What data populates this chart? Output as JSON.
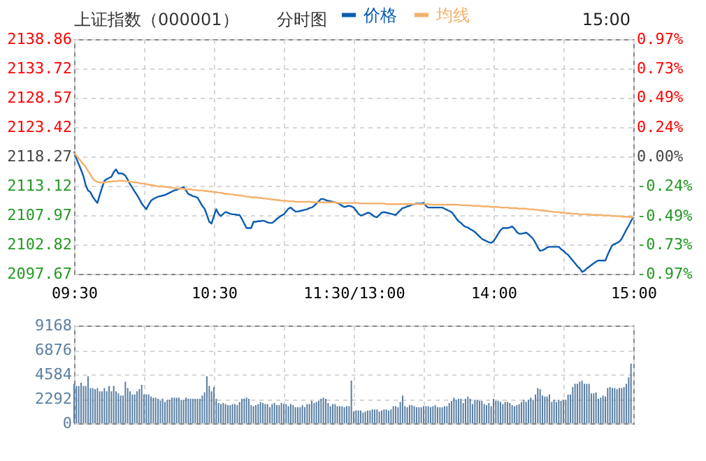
{
  "chart_data": [
    {
      "type": "line",
      "title": "上证指数（000001）",
      "subtitle": "分时图",
      "annotations": [
        "15:00"
      ],
      "legend": "top",
      "grid": true,
      "categories": [
        "09:30",
        null,
        null,
        null,
        null,
        null,
        null,
        null,
        null,
        null,
        null,
        null,
        null,
        null,
        null,
        null,
        null,
        null,
        null,
        null,
        null,
        null,
        null,
        null,
        null,
        null,
        null,
        null,
        null,
        null,
        null,
        null,
        null,
        null,
        null,
        null,
        null,
        null,
        null,
        null,
        null,
        null,
        null,
        null,
        null,
        null,
        null,
        null,
        null,
        null,
        null,
        null,
        null,
        null,
        null,
        null,
        null,
        null,
        null,
        null,
        "10:30",
        null,
        null,
        null,
        null,
        null,
        null,
        null,
        null,
        null,
        null,
        null,
        null,
        null,
        null,
        null,
        null,
        null,
        null,
        null,
        null,
        null,
        null,
        null,
        null,
        null,
        null,
        null,
        null,
        null,
        null,
        null,
        null,
        null,
        null,
        null,
        null,
        null,
        null,
        null,
        null,
        null,
        null,
        null,
        null,
        null,
        null,
        null,
        null,
        null,
        null,
        null,
        null,
        null,
        null,
        null,
        null,
        null,
        null,
        null,
        "11:30/13:00",
        null,
        null,
        null,
        null,
        null,
        null,
        null,
        null,
        null,
        null,
        null,
        null,
        null,
        null,
        null,
        null,
        null,
        null,
        null,
        null,
        null,
        null,
        null,
        null,
        null,
        null,
        null,
        null,
        null,
        null,
        null,
        null,
        null,
        null,
        null,
        null,
        null,
        null,
        null,
        null,
        null,
        null,
        null,
        null,
        null,
        null,
        null,
        null,
        null,
        null,
        null,
        null,
        null,
        null,
        null,
        null,
        null,
        null,
        null,
        "14:00",
        null,
        null,
        null,
        null,
        null,
        null,
        null,
        null,
        null,
        null,
        null,
        null,
        null,
        null,
        null,
        null,
        null,
        null,
        null,
        null,
        null,
        null,
        null,
        null,
        null,
        null,
        null,
        null,
        null,
        null,
        null,
        null,
        null,
        null,
        null,
        null,
        null,
        null,
        null,
        null,
        null,
        null,
        null,
        null,
        null,
        null,
        null,
        null,
        null,
        null,
        null,
        null,
        null,
        null,
        null,
        null,
        null,
        null,
        null,
        "15:00"
      ],
      "ylim": [
        2097.67,
        2138.86
      ],
      "yticks": [
        2097.67,
        2102.82,
        2107.97,
        2113.12,
        2118.27,
        2123.42,
        2128.57,
        2133.72,
        2138.86
      ],
      "y2lim": [
        -0.97,
        0.97
      ],
      "y2ticks": [
        {
          "value": -0.97,
          "label": "-0.97%"
        },
        {
          "value": -0.73,
          "label": "-0.73%"
        },
        {
          "value": -0.49,
          "label": "-0.49%"
        },
        {
          "value": -0.24,
          "label": "-0.24%"
        },
        {
          "value": 0,
          "label": "0.00%"
        },
        {
          "value": 0.24,
          "label": "0.24%"
        },
        {
          "value": 0.49,
          "label": "0.49%"
        },
        {
          "value": 0.73,
          "label": "0.73%"
        },
        {
          "value": 0.97,
          "label": "0.97%"
        }
      ],
      "series": [
        {
          "name": "价格",
          "color": "#0a5cb0",
          "values": [
            2119.1,
            2117.9,
            2116.9,
            2115.9,
            2114.8,
            2113.2,
            2112.3,
            2112.0,
            2111.2,
            2110.6,
            2110.1,
            2111.5,
            2112.8,
            2114.0,
            2114.3,
            2114.5,
            2114.7,
            2115.5,
            2116.0,
            2115.3,
            2115.3,
            2115.2,
            2114.9,
            2114.2,
            2113.4,
            2112.8,
            2112.1,
            2111.5,
            2110.8,
            2110.0,
            2109.5,
            2109.0,
            2109.8,
            2110.5,
            2110.8,
            2111.0,
            2111.2,
            2111.3,
            2111.4,
            2111.5,
            2111.7,
            2111.9,
            2112.1,
            2112.3,
            2112.4,
            2112.6,
            2112.7,
            2112.9,
            2112.3,
            2111.7,
            2111.5,
            2111.3,
            2111.2,
            2111.0,
            2110.3,
            2109.6,
            2109.1,
            2108.0,
            2106.8,
            2106.5,
            2107.8,
            2109.0,
            2108.2,
            2107.8,
            2108.2,
            2108.5,
            2108.4,
            2108.2,
            2108.1,
            2108.1,
            2108.0,
            2108.0,
            2107.3,
            2106.5,
            2105.7,
            2105.7,
            2105.7,
            2106.8,
            2106.8,
            2106.9,
            2106.9,
            2107.0,
            2106.9,
            2106.7,
            2106.6,
            2106.6,
            2106.9,
            2107.3,
            2107.6,
            2107.9,
            2108.1,
            2108.6,
            2109.1,
            2109.3,
            2108.9,
            2108.6,
            2108.6,
            2108.7,
            2108.8,
            2108.9,
            2109.0,
            2109.2,
            2109.3,
            2109.6,
            2110.0,
            2110.4,
            2110.8,
            2110.8,
            2110.6,
            2110.5,
            2110.4,
            2110.3,
            2110.2,
            2110.1,
            2109.9,
            2109.6,
            2109.4,
            2109.5,
            2109.6,
            2109.5,
            2109.3,
            2108.8,
            2108.2,
            2107.9,
            2108.0,
            2108.2,
            2108.4,
            2108.3,
            2108.0,
            2107.7,
            2107.6,
            2108.0,
            2108.4,
            2108.5,
            2108.4,
            2108.3,
            2108.2,
            2108.1,
            2108.0,
            2108.4,
            2108.8,
            2109.2,
            2109.3,
            2109.5,
            2109.6,
            2109.8,
            2109.9,
            2110.0,
            2110.0,
            2110.0,
            2110.1,
            2109.6,
            2109.3,
            2109.3,
            2109.3,
            2109.3,
            2109.3,
            2109.3,
            2109.3,
            2109.1,
            2108.9,
            2108.7,
            2108.5,
            2108.0,
            2107.4,
            2106.9,
            2106.6,
            2106.2,
            2105.9,
            2105.8,
            2105.5,
            2105.3,
            2105.0,
            2104.6,
            2104.2,
            2103.8,
            2103.6,
            2103.4,
            2103.2,
            2103.1,
            2103.4,
            2104.0,
            2104.7,
            2105.3,
            2105.7,
            2105.7,
            2105.7,
            2105.8,
            2106.0,
            2105.6,
            2105.0,
            2104.7,
            2104.7,
            2104.8,
            2104.9,
            2104.6,
            2104.2,
            2103.8,
            2103.1,
            2102.3,
            2101.7,
            2101.8,
            2102.0,
            2102.3,
            2102.4,
            2102.4,
            2102.4,
            2102.4,
            2102.4,
            2102.0,
            2101.7,
            2101.3,
            2101.0,
            2100.5,
            2100.0,
            2099.5,
            2099.0,
            2098.6,
            2098.0,
            2098.2,
            2098.6,
            2098.9,
            2099.2,
            2099.5,
            2099.8,
            2100.0,
            2100.0,
            2100.0,
            2100.0,
            2101.0,
            2101.9,
            2102.7,
            2102.9,
            2103.1,
            2103.3,
            2103.8,
            2104.6,
            2105.4,
            2106.1,
            2106.9,
            2107.6
          ]
        },
        {
          "name": "均线",
          "color": "#f5b06a",
          "values": [
            2118.9,
            2118.4,
            2117.9,
            2117.4,
            2116.9,
            2116.4,
            2115.7,
            2115.1,
            2114.4,
            2114.0,
            2113.8,
            2113.7,
            2113.7,
            2113.7,
            2113.8,
            2113.8,
            2113.9,
            2113.9,
            2113.9,
            2114.0,
            2114.0,
            2114.0,
            2113.9,
            2113.9,
            2113.8,
            2113.8,
            2113.7,
            2113.7,
            2113.6,
            2113.5,
            2113.5,
            2113.4,
            2113.3,
            2113.3,
            2113.2,
            2113.1,
            2113.0,
            2113.0,
            2113.0,
            2112.9,
            2112.9,
            2112.8,
            2112.8,
            2112.7,
            2112.7,
            2112.6,
            2112.6,
            2112.6,
            2112.5,
            2112.5,
            2112.5,
            2112.4,
            2112.4,
            2112.3,
            2112.3,
            2112.3,
            2112.2,
            2112.2,
            2112.1,
            2112.1,
            2112.0,
            2112.0,
            2111.9,
            2111.9,
            2111.8,
            2111.7,
            2111.7,
            2111.6,
            2111.6,
            2111.5,
            2111.5,
            2111.4,
            2111.4,
            2111.3,
            2111.2,
            2111.2,
            2111.1,
            2111.1,
            2111.1,
            2111.0,
            2111.0,
            2110.9,
            2110.9,
            2110.8,
            2110.8,
            2110.7,
            2110.7,
            2110.6,
            2110.6,
            2110.5,
            2110.5,
            2110.5,
            2110.4,
            2110.4,
            2110.4,
            2110.3,
            2110.3,
            2110.3,
            2110.3,
            2110.3,
            2110.3,
            2110.3,
            2110.3,
            2110.2,
            2110.2,
            2110.2,
            2110.2,
            2110.2,
            2110.2,
            2110.2,
            2110.2,
            2110.2,
            2110.2,
            2110.1,
            2110.1,
            2110.1,
            2110.1,
            2110.1,
            2110.1,
            2110.1,
            2110.1,
            2110.1,
            2110.1,
            2110.0,
            2110.0,
            2110.0,
            2110.0,
            2110.0,
            2110.0,
            2110.0,
            2110.0,
            2110.0,
            2110.0,
            2110.0,
            2109.9,
            2109.9,
            2109.9,
            2109.9,
            2109.9,
            2109.9,
            2109.9,
            2109.9,
            2109.9,
            2109.9,
            2109.9,
            2109.9,
            2109.9,
            2109.9,
            2109.9,
            2109.9,
            2109.9,
            2109.9,
            2109.9,
            2109.8,
            2109.8,
            2109.8,
            2109.8,
            2109.8,
            2109.8,
            2109.8,
            2109.8,
            2109.8,
            2109.8,
            2109.8,
            2109.8,
            2109.8,
            2109.7,
            2109.7,
            2109.7,
            2109.7,
            2109.7,
            2109.6,
            2109.6,
            2109.6,
            2109.6,
            2109.5,
            2109.5,
            2109.5,
            2109.5,
            2109.4,
            2109.4,
            2109.4,
            2109.4,
            2109.3,
            2109.3,
            2109.3,
            2109.3,
            2109.2,
            2109.2,
            2109.2,
            2109.2,
            2109.1,
            2109.1,
            2109.1,
            2109.1,
            2109.0,
            2109.0,
            2109.0,
            2108.9,
            2108.9,
            2108.8,
            2108.8,
            2108.7,
            2108.7,
            2108.6,
            2108.6,
            2108.5,
            2108.5,
            2108.5,
            2108.4,
            2108.4,
            2108.3,
            2108.3,
            2108.3,
            2108.2,
            2108.2,
            2108.2,
            2108.1,
            2108.1,
            2108.1,
            2108.1,
            2108.1,
            2108.0,
            2108.0,
            2108.0,
            2108.0,
            2108.0,
            2107.9,
            2107.9,
            2107.9,
            2107.9,
            2107.8,
            2107.8,
            2107.8,
            2107.8,
            2107.7,
            2107.7,
            2107.7,
            2107.7,
            2107.6,
            2107.6
          ]
        }
      ]
    },
    {
      "type": "bar",
      "color": "#5a7fa2",
      "grid": true,
      "tick_labels": "y",
      "categories": [
        null,
        null,
        null,
        null,
        null,
        null,
        null,
        null,
        null,
        null,
        null,
        null,
        null,
        null,
        null,
        null,
        null,
        null,
        null,
        null,
        null,
        null,
        null,
        null,
        null,
        null,
        null,
        null,
        null,
        null,
        null,
        null,
        null,
        null,
        null,
        null,
        null,
        null,
        null,
        null,
        null,
        null,
        null,
        null,
        null,
        null,
        null,
        null,
        null,
        null,
        null,
        null,
        null,
        null,
        null,
        null,
        null,
        null,
        null,
        null,
        null,
        null,
        null,
        null,
        null,
        null,
        null,
        null,
        null,
        null,
        null,
        null,
        null,
        null,
        null,
        null,
        null,
        null,
        null,
        null,
        null,
        null,
        null,
        null,
        null,
        null,
        null,
        null,
        null,
        null,
        null,
        null,
        null,
        null,
        null,
        null,
        null,
        null,
        null,
        null,
        null,
        null,
        null,
        null,
        null,
        null,
        null,
        null,
        null,
        null,
        null,
        null,
        null,
        null,
        null,
        null,
        null,
        null,
        null,
        null,
        null,
        null,
        null,
        null,
        null,
        null,
        null,
        null,
        null,
        null,
        null,
        null,
        null,
        null,
        null,
        null,
        null,
        null,
        null,
        null,
        null,
        null,
        null,
        null,
        null,
        null,
        null,
        null,
        null,
        null,
        null,
        null,
        null,
        null,
        null,
        null,
        null,
        null,
        null,
        null,
        null,
        null,
        null,
        null,
        null,
        null,
        null,
        null,
        null,
        null,
        null,
        null,
        null,
        null,
        null,
        null,
        null,
        null,
        null,
        null,
        null,
        null,
        null,
        null,
        null,
        null,
        null,
        null,
        null,
        null,
        null,
        null,
        null,
        null,
        null,
        null,
        null,
        null,
        null,
        null,
        null,
        null,
        null,
        null,
        null,
        null,
        null,
        null,
        null,
        null,
        null,
        null,
        null,
        null,
        null,
        null,
        null,
        null,
        null,
        null,
        null,
        null,
        null,
        null,
        null,
        null,
        null,
        null,
        null,
        null,
        null,
        null,
        null,
        null,
        null,
        null,
        null,
        null,
        null,
        null,
        null
      ],
      "ylim": [
        0,
        9168
      ],
      "yticks": [
        0,
        2292,
        4584,
        6876,
        9168
      ],
      "values": [
        3700,
        3500,
        3500,
        3800,
        3500,
        3500,
        4400,
        3300,
        3300,
        3200,
        3300,
        3000,
        3000,
        3300,
        3000,
        3500,
        3000,
        3500,
        3000,
        2800,
        2600,
        2600,
        3900,
        3300,
        3000,
        2700,
        2700,
        3000,
        3200,
        3600,
        2700,
        2700,
        2700,
        2500,
        2400,
        2400,
        2300,
        2100,
        2300,
        2000,
        2200,
        2200,
        2400,
        2400,
        2400,
        2400,
        2200,
        2200,
        2400,
        2300,
        2300,
        2300,
        2300,
        2300,
        2300,
        2600,
        2900,
        4400,
        3500,
        3000,
        3400,
        2300,
        1900,
        1800,
        1900,
        1800,
        1700,
        1700,
        1800,
        1800,
        1700,
        2000,
        2300,
        2300,
        2400,
        2300,
        1700,
        1600,
        1700,
        1800,
        2000,
        1900,
        1800,
        1800,
        1500,
        1800,
        1900,
        1700,
        1700,
        1900,
        1800,
        1800,
        1600,
        1800,
        1700,
        1500,
        1500,
        1500,
        1700,
        1500,
        1800,
        1800,
        2100,
        1900,
        2000,
        2100,
        2300,
        2400,
        2300,
        1900,
        1600,
        1800,
        1800,
        1600,
        1600,
        1600,
        1500,
        1600,
        1600,
        4000,
        1100,
        1200,
        1200,
        1200,
        1000,
        1100,
        1200,
        1200,
        1300,
        1300,
        1300,
        1100,
        1200,
        1300,
        1300,
        1200,
        1300,
        1600,
        1600,
        1500,
        2000,
        2600,
        1600,
        1500,
        1700,
        1700,
        1600,
        1500,
        1500,
        1500,
        1600,
        1600,
        1600,
        1500,
        1600,
        1700,
        1500,
        1500,
        1500,
        1600,
        1600,
        1900,
        2100,
        2400,
        2200,
        2300,
        2300,
        1900,
        2300,
        2500,
        2300,
        1800,
        2200,
        2200,
        2100,
        2100,
        1800,
        1700,
        1900,
        1600,
        2300,
        2100,
        2100,
        2000,
        1800,
        2000,
        2000,
        1900,
        1700,
        1600,
        1700,
        1800,
        2000,
        2200,
        2000,
        2200,
        2400,
        2200,
        2700,
        3300,
        3200,
        2600,
        2500,
        2500,
        2700,
        2000,
        2200,
        2000,
        2200,
        2100,
        2200,
        2200,
        2700,
        2700,
        3400,
        3700,
        3700,
        3900,
        4000,
        3700,
        3700,
        3700,
        2800,
        2800,
        2900,
        2300,
        2400,
        2600,
        2500,
        3300,
        3400,
        3300,
        3300,
        3200,
        3300,
        3300,
        3400,
        3700,
        4300,
        5600,
        null
      ]
    }
  ]
}
